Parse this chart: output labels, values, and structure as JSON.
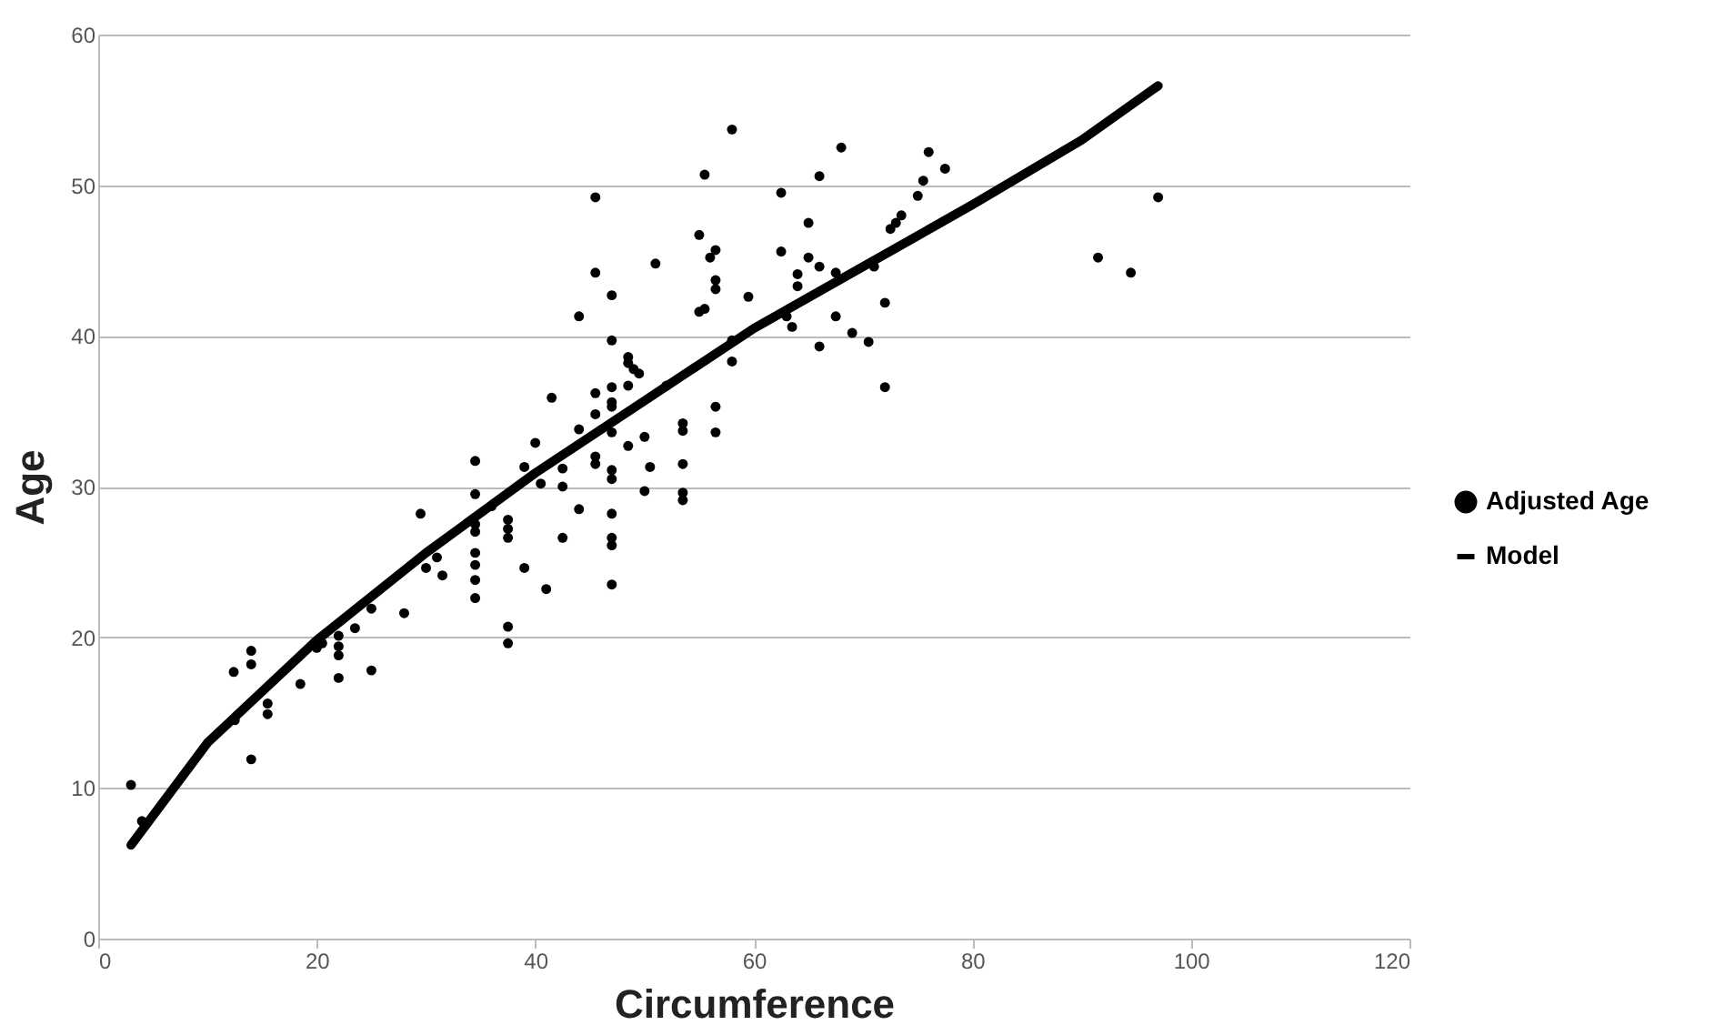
{
  "chart_data": {
    "type": "scatter",
    "xlabel": "Circumference",
    "ylabel": "Age",
    "xlim": [
      0,
      120
    ],
    "xticks": [
      0,
      20,
      40,
      60,
      80,
      100,
      120
    ],
    "ylim": [
      0,
      60
    ],
    "yticks": [
      0,
      10,
      20,
      30,
      40,
      50,
      60
    ],
    "grid": "y",
    "legend": "right",
    "marker": "circle",
    "series": [
      {
        "name": "Adjusted Age",
        "color": "#000000",
        "x": [
          3,
          4,
          12.4,
          12.5,
          14,
          14,
          14,
          15.5,
          15.5,
          18.5,
          20,
          20.5,
          22,
          22,
          22,
          22,
          23.5,
          25,
          25,
          28,
          29.5,
          30,
          31,
          31.5,
          34.5,
          34.5,
          34.5,
          34.5,
          34.5,
          34.5,
          34.5,
          34.5,
          36,
          37.5,
          37.5,
          37.5,
          37.5,
          37.5,
          39,
          39,
          40,
          40.5,
          41,
          41.5,
          42.5,
          42.5,
          42.5,
          44,
          44,
          44,
          45.5,
          45.5,
          45.5,
          45.5,
          45.5,
          45.5,
          47,
          47,
          47,
          47,
          47,
          47,
          47,
          47,
          47,
          47,
          47,
          47,
          48.5,
          48.5,
          48.5,
          48.5,
          49,
          49.5,
          50,
          50,
          50.5,
          51,
          52,
          53.5,
          53.5,
          53.5,
          53.5,
          53.5,
          55,
          55,
          55.5,
          55.5,
          56,
          56.5,
          56.5,
          56.5,
          56.5,
          56.5,
          58,
          58,
          58,
          59.5,
          62.5,
          62.5,
          63,
          63.5,
          64,
          64,
          65,
          65,
          66,
          66,
          66,
          67.5,
          67.5,
          68,
          69,
          70.5,
          71,
          72,
          72,
          72.5,
          73,
          73.5,
          75,
          75.5,
          76,
          77.5,
          91.5,
          94.5,
          97
        ],
        "values": [
          10.2,
          7.8,
          17.7,
          14.5,
          19.1,
          18.2,
          11.9,
          15.6,
          14.9,
          16.9,
          19.3,
          19.6,
          20.1,
          19.4,
          18.8,
          17.3,
          20.6,
          21.9,
          17.8,
          21.6,
          28.2,
          24.6,
          25.3,
          24.1,
          31.7,
          29.5,
          27.5,
          27.0,
          25.6,
          24.8,
          23.8,
          22.6,
          28.7,
          27.8,
          27.2,
          26.6,
          20.7,
          19.6,
          31.3,
          24.6,
          32.9,
          30.2,
          23.2,
          35.9,
          31.2,
          30.0,
          26.6,
          41.3,
          33.8,
          28.5,
          44.2,
          49.2,
          36.2,
          34.8,
          32.0,
          31.5,
          42.7,
          39.7,
          36.6,
          35.6,
          35.3,
          33.6,
          31.1,
          30.5,
          28.2,
          26.6,
          26.1,
          23.5,
          38.6,
          38.2,
          36.7,
          32.7,
          37.8,
          37.5,
          33.3,
          29.7,
          31.3,
          44.8,
          36.7,
          34.2,
          33.7,
          31.5,
          29.6,
          29.1,
          46.7,
          41.6,
          41.8,
          50.7,
          45.2,
          45.7,
          43.7,
          43.1,
          35.3,
          33.6,
          53.7,
          39.7,
          38.3,
          42.6,
          49.5,
          45.6,
          41.3,
          40.6,
          44.1,
          43.3,
          47.5,
          45.2,
          50.6,
          44.6,
          39.3,
          44.2,
          41.3,
          52.5,
          40.2,
          39.6,
          44.6,
          42.2,
          36.6,
          47.1,
          47.5,
          48.0,
          49.3,
          50.3,
          52.2,
          51.1,
          45.2,
          44.2,
          49.2
        ]
      },
      {
        "name": "Model",
        "type": "line",
        "color": "#000000",
        "marker": "none",
        "line_style": "solid",
        "x": [
          3,
          10,
          20,
          30,
          40,
          50,
          60,
          70,
          80,
          90,
          97
        ],
        "values": [
          6.2,
          13,
          19.8,
          25.6,
          30.9,
          35.7,
          40.5,
          44.6,
          48.7,
          53,
          56.6
        ]
      }
    ]
  }
}
